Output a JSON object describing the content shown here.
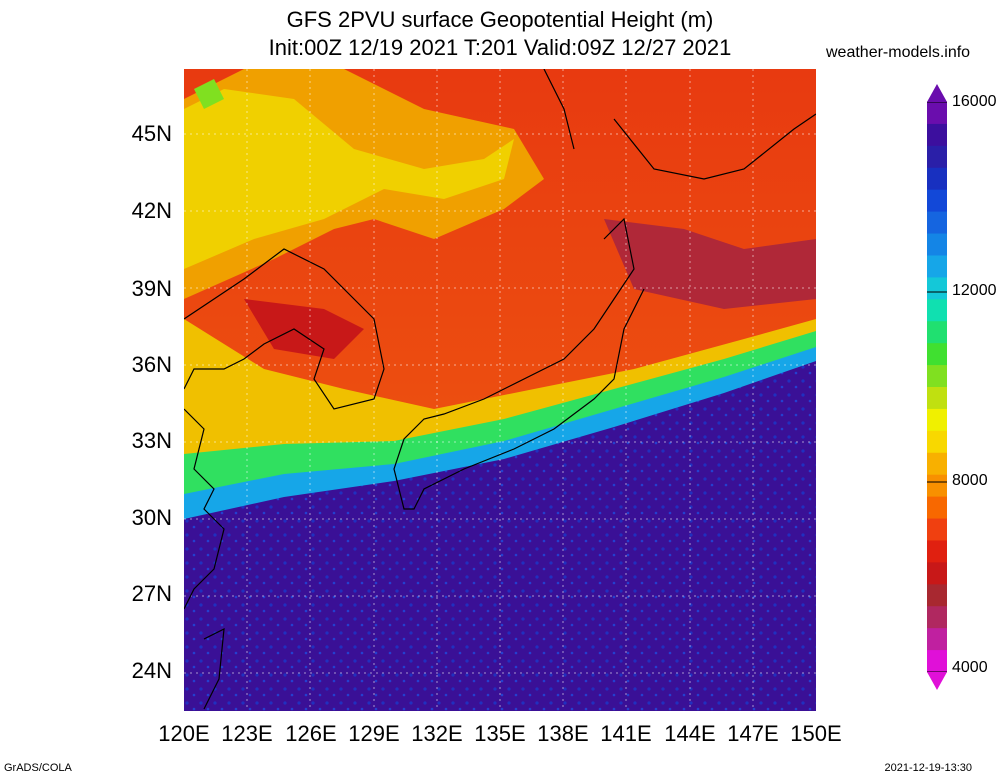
{
  "title_line1": "GFS 2PVU surface Geopotential Height (m)",
  "title_line2": "Init:00Z 12/19 2021 T:201 Valid:09Z 12/27 2021",
  "site": "weather-models.info",
  "credit": "GrADS/COLA",
  "timestamp": "2021-12-19-13:30",
  "lat_labels": [
    "45N",
    "42N",
    "39N",
    "36N",
    "33N",
    "30N",
    "27N",
    "24N"
  ],
  "lon_labels": [
    "120E",
    "123E",
    "126E",
    "129E",
    "132E",
    "135E",
    "138E",
    "141E",
    "144E",
    "147E",
    "150E"
  ],
  "colorbar": {
    "labels": [
      "16000",
      "12000",
      "8000",
      "4000"
    ],
    "colors": [
      "#6a0dad",
      "#3c0f9e",
      "#2a1fa8",
      "#1830c0",
      "#1248d8",
      "#1565e0",
      "#1485e6",
      "#16a6e8",
      "#14c8d8",
      "#10e0b0",
      "#20e070",
      "#40e030",
      "#80e020",
      "#c0e010",
      "#f0f000",
      "#f8d800",
      "#f8b000",
      "#f89000",
      "#f86800",
      "#f04010",
      "#e02010",
      "#c81818",
      "#a82830",
      "#b02860",
      "#c020a0",
      "#e010d8"
    ]
  }
}
